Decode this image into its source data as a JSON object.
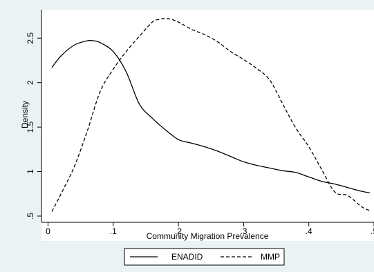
{
  "chart_data": {
    "type": "line",
    "xlabel": "Community Migration Prevalence",
    "ylabel": "Density",
    "xlim": [
      -0.01,
      0.5
    ],
    "ylim": [
      0.43,
      2.82
    ],
    "x_ticks": [
      0,
      0.1,
      0.2,
      0.3,
      0.4,
      0.5
    ],
    "x_tick_labels": [
      "0",
      ".1",
      ".2",
      ".3",
      ".4",
      ".5"
    ],
    "y_ticks": [
      0.5,
      1,
      1.5,
      2,
      2.5
    ],
    "y_tick_labels": [
      ".5",
      "1",
      "1.5",
      "2",
      "2.5"
    ],
    "grid": false,
    "legend_position": "bottom",
    "series": [
      {
        "name": "ENADID",
        "style": "solid",
        "color": "#000000",
        "x": [
          0.006,
          0.02,
          0.04,
          0.06,
          0.07,
          0.08,
          0.1,
          0.12,
          0.14,
          0.16,
          0.18,
          0.2,
          0.22,
          0.24,
          0.26,
          0.28,
          0.3,
          0.32,
          0.34,
          0.36,
          0.38,
          0.4,
          0.42,
          0.44,
          0.46,
          0.48,
          0.494
        ],
        "y": [
          2.17,
          2.3,
          2.42,
          2.47,
          2.47,
          2.45,
          2.35,
          2.12,
          1.76,
          1.6,
          1.47,
          1.36,
          1.32,
          1.28,
          1.23,
          1.17,
          1.11,
          1.07,
          1.04,
          1.01,
          0.99,
          0.94,
          0.89,
          0.86,
          0.82,
          0.78,
          0.76
        ]
      },
      {
        "name": "MMP",
        "style": "dashed",
        "color": "#000000",
        "x": [
          0.006,
          0.02,
          0.04,
          0.06,
          0.08,
          0.1,
          0.12,
          0.14,
          0.16,
          0.17,
          0.18,
          0.19,
          0.2,
          0.22,
          0.24,
          0.26,
          0.28,
          0.3,
          0.32,
          0.34,
          0.36,
          0.38,
          0.4,
          0.42,
          0.44,
          0.46,
          0.48,
          0.494
        ],
        "y": [
          0.55,
          0.75,
          1.05,
          1.45,
          1.9,
          2.15,
          2.35,
          2.52,
          2.68,
          2.71,
          2.72,
          2.71,
          2.68,
          2.6,
          2.54,
          2.46,
          2.35,
          2.26,
          2.16,
          2.03,
          1.76,
          1.49,
          1.28,
          1.02,
          0.77,
          0.73,
          0.61,
          0.56
        ]
      }
    ]
  }
}
